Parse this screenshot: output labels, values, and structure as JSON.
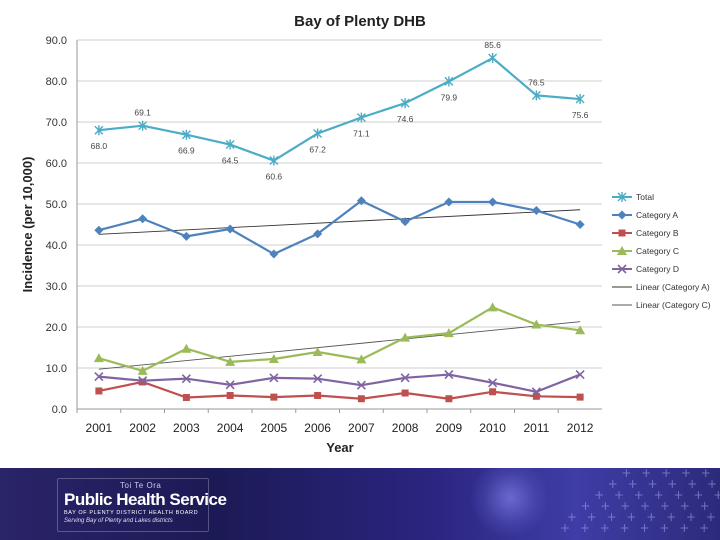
{
  "chart_data": {
    "type": "line",
    "title": "Bay of Plenty DHB",
    "xlabel": "Year",
    "ylabel": "Incidence (per 10,000)",
    "ylim": [
      0,
      90
    ],
    "yticks": [
      "0.0",
      "10.0",
      "20.0",
      "30.0",
      "40.0",
      "50.0",
      "60.0",
      "70.0",
      "80.0",
      "90.0"
    ],
    "ytick_values": [
      0,
      10,
      20,
      30,
      40,
      50,
      60,
      70,
      80,
      90
    ],
    "categories": [
      "2001",
      "2002",
      "2003",
      "2004",
      "2005",
      "2006",
      "2007",
      "2008",
      "2009",
      "2010",
      "2011",
      "2012"
    ],
    "grid": true,
    "legend": "right",
    "series": [
      {
        "name": "Total",
        "marker": "star",
        "color": "#4bacc6",
        "values": [
          68.0,
          69.1,
          66.9,
          64.5,
          60.6,
          67.2,
          71.1,
          74.6,
          79.9,
          85.6,
          76.5,
          75.6
        ],
        "labels": [
          "68.0",
          "69.1",
          "66.9",
          "64.5",
          "60.6",
          "67.2",
          "71.1",
          "74.6",
          "79.9",
          "85.6",
          "76.5",
          "75.6"
        ]
      },
      {
        "name": "Category A",
        "marker": "diamond",
        "color": "#4f81bd",
        "values": [
          43.6,
          46.4,
          42.1,
          43.9,
          37.8,
          42.7,
          50.8,
          45.7,
          50.5,
          50.5,
          48.4,
          45.0
        ]
      },
      {
        "name": "Category B",
        "marker": "square",
        "color": "#c0504d",
        "values": [
          4.4,
          6.6,
          2.8,
          3.3,
          2.9,
          3.3,
          2.5,
          3.9,
          2.5,
          4.2,
          3.1,
          2.9
        ]
      },
      {
        "name": "Category C",
        "marker": "triangle",
        "color": "#9bbb59",
        "values": [
          12.4,
          9.3,
          14.7,
          11.5,
          12.2,
          13.9,
          12.1,
          17.4,
          18.5,
          24.8,
          20.6,
          19.2
        ]
      },
      {
        "name": "Category D",
        "marker": "x",
        "color": "#8064a2",
        "values": [
          7.9,
          6.9,
          7.4,
          5.9,
          7.6,
          7.4,
          5.8,
          7.6,
          8.4,
          6.4,
          4.2,
          8.4
        ]
      }
    ],
    "trendlines": [
      {
        "name": "Linear (Category A)",
        "color": "#333333",
        "values": [
          42.6,
          48.6
        ]
      },
      {
        "name": "Linear (Category C)",
        "color": "#555555",
        "values": [
          9.7,
          21.3
        ]
      }
    ]
  },
  "footer": {
    "logo_tagline_top": "Toi Te Ora",
    "logo_title": "Public Health Service",
    "logo_subtitle": "BAY OF PLENTY DISTRICT HEALTH BOARD",
    "logo_motto": "Serving Bay of Plenty and Lakes districts"
  }
}
